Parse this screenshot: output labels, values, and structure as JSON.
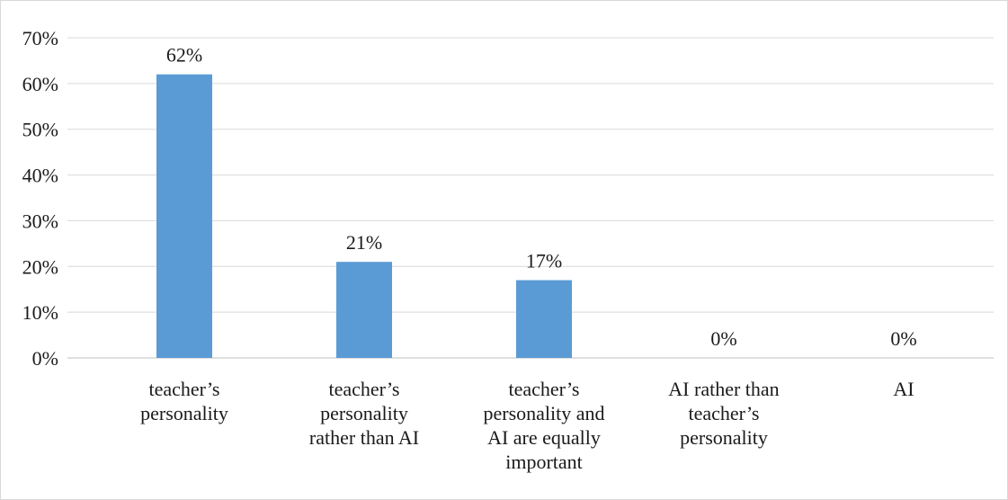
{
  "chart_data": {
    "type": "bar",
    "categories": [
      "teacher’s personality",
      "teacher’s personality rather than AI",
      "teacher’s personality and AI are equally important",
      "AI rather than teacher’s personality",
      "AI"
    ],
    "values": [
      62,
      21,
      17,
      0,
      0
    ],
    "value_labels": [
      "62%",
      "21%",
      "17%",
      "0%",
      "0%"
    ],
    "color": "#5b9bd5",
    "ylim": [
      0,
      70
    ],
    "yticks": [
      {
        "value": 0,
        "label": "0%"
      },
      {
        "value": 10,
        "label": "10%"
      },
      {
        "value": 20,
        "label": "20%"
      },
      {
        "value": 30,
        "label": "30%"
      },
      {
        "value": 40,
        "label": "40%"
      },
      {
        "value": 50,
        "label": "50%"
      },
      {
        "value": 60,
        "label": "60%"
      },
      {
        "value": 70,
        "label": "70%"
      }
    ],
    "grid": true
  }
}
